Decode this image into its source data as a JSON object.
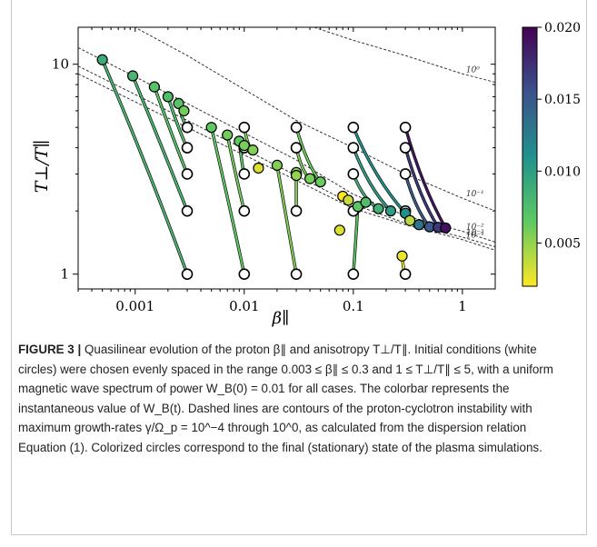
{
  "figure": {
    "caption_lead": "FIGURE 3 |",
    "caption_text": "Quasilinear evolution of the proton β∥ and anisotropy T⊥/T∥. Initial conditions (white circles) were chosen evenly spaced in the range 0.003 ≤ β∥ ≤ 0.3 and 1 ≤ T⊥/T∥ ≤ 5, with a uniform magnetic wave spectrum of power W_B(0) = 0.01 for all cases. The colorbar represents the instantaneous value of W_B(t). Dashed lines are contours of the proton-cyclotron instability with maximum growth-rates γ/Ω_p = 10^−4 through 10^0, as calculated from the dispersion relation Equation (1). Colorized circles correspond to the final (stationary) state of the plasma simulations."
  },
  "chart_data": {
    "type": "scatter",
    "xlabel": "β∥",
    "ylabel": "T⊥/T∥",
    "xscale": "log",
    "yscale": "log",
    "xlim": [
      0.0003,
      2
    ],
    "ylim": [
      0.85,
      15
    ],
    "x_ticks": [
      0.001,
      0.01,
      0.1,
      1
    ],
    "x_tick_labels": [
      "0.001",
      "0.01",
      "0.1",
      "1"
    ],
    "y_ticks": [
      1,
      10
    ],
    "y_tick_labels": [
      "1",
      "10"
    ],
    "colorbar": {
      "label_values": [
        0.005,
        0.01,
        0.015,
        0.02
      ],
      "tick_labels": [
        "0.005",
        "0.010",
        "0.015",
        "0.020"
      ],
      "range": [
        0.002,
        0.02
      ],
      "colors": [
        "#fde725",
        "#5ec962",
        "#21918c",
        "#3b528b",
        "#440154"
      ]
    },
    "contours": [
      {
        "label": "10⁰",
        "points": [
          [
            0.0003,
            31
          ],
          [
            0.003,
            22
          ],
          [
            0.03,
            16
          ],
          [
            0.1,
            13
          ],
          [
            0.3,
            11
          ],
          [
            1,
            9
          ],
          [
            2,
            8.2
          ]
        ]
      },
      {
        "label": "10⁻¹",
        "points": [
          [
            0.0003,
            21
          ],
          [
            0.003,
            11
          ],
          [
            0.03,
            5.4
          ],
          [
            0.1,
            4
          ],
          [
            0.3,
            3
          ],
          [
            1,
            2.3
          ],
          [
            2,
            2.0
          ]
        ]
      },
      {
        "label": "10⁻²",
        "points": [
          [
            0.0003,
            12
          ],
          [
            0.003,
            6.5
          ],
          [
            0.03,
            3.5
          ],
          [
            0.1,
            2.4
          ],
          [
            0.3,
            1.9
          ],
          [
            1,
            1.6
          ],
          [
            2,
            1.42
          ]
        ]
      },
      {
        "label": "10⁻³",
        "points": [
          [
            0.0003,
            9.8
          ],
          [
            0.003,
            5.4
          ],
          [
            0.03,
            2.95
          ],
          [
            0.1,
            2.15
          ],
          [
            0.3,
            1.75
          ],
          [
            1,
            1.5
          ],
          [
            2,
            1.35
          ]
        ]
      },
      {
        "label": "10⁻⁴",
        "points": [
          [
            0.0003,
            9.0
          ],
          [
            0.003,
            5.0
          ],
          [
            0.03,
            2.8
          ],
          [
            0.1,
            2.05
          ],
          [
            0.3,
            1.72
          ],
          [
            1,
            1.46
          ],
          [
            2,
            1.3
          ]
        ]
      }
    ],
    "initial_conditions": [
      [
        0.003,
        1
      ],
      [
        0.003,
        2
      ],
      [
        0.003,
        3
      ],
      [
        0.003,
        4
      ],
      [
        0.003,
        5
      ],
      [
        0.01,
        1
      ],
      [
        0.01,
        2
      ],
      [
        0.01,
        3
      ],
      [
        0.01,
        4
      ],
      [
        0.01,
        5
      ],
      [
        0.03,
        1
      ],
      [
        0.03,
        2
      ],
      [
        0.03,
        3
      ],
      [
        0.03,
        4
      ],
      [
        0.03,
        5
      ],
      [
        0.1,
        1
      ],
      [
        0.1,
        2
      ],
      [
        0.1,
        3
      ],
      [
        0.1,
        4
      ],
      [
        0.1,
        5
      ],
      [
        0.3,
        1
      ],
      [
        0.3,
        2
      ],
      [
        0.3,
        3
      ],
      [
        0.3,
        4
      ],
      [
        0.3,
        5
      ]
    ],
    "final_states": [
      {
        "x": 0.0005,
        "y": 10.5,
        "w": 0.009
      },
      {
        "x": 0.00095,
        "y": 8.8,
        "w": 0.008
      },
      {
        "x": 0.0015,
        "y": 7.8,
        "w": 0.007
      },
      {
        "x": 0.002,
        "y": 7.0,
        "w": 0.0075
      },
      {
        "x": 0.0025,
        "y": 6.5,
        "w": 0.007
      },
      {
        "x": 0.0028,
        "y": 6.0,
        "w": 0.006
      },
      {
        "x": 0.005,
        "y": 5.0,
        "w": 0.0065
      },
      {
        "x": 0.007,
        "y": 4.6,
        "w": 0.006
      },
      {
        "x": 0.009,
        "y": 4.3,
        "w": 0.0065
      },
      {
        "x": 0.01,
        "y": 4.1,
        "w": 0.0058
      },
      {
        "x": 0.012,
        "y": 3.9,
        "w": 0.0055
      },
      {
        "x": 0.0135,
        "y": 3.2,
        "w": 0.003
      },
      {
        "x": 0.02,
        "y": 3.3,
        "w": 0.0055
      },
      {
        "x": 0.03,
        "y": 3.05,
        "w": 0.0055
      },
      {
        "x": 0.03,
        "y": 2.95,
        "w": 0.005
      },
      {
        "x": 0.04,
        "y": 2.85,
        "w": 0.0058
      },
      {
        "x": 0.05,
        "y": 2.75,
        "w": 0.0062
      },
      {
        "x": 0.08,
        "y": 2.35,
        "w": 0.002
      },
      {
        "x": 0.09,
        "y": 2.25,
        "w": 0.0035
      },
      {
        "x": 0.11,
        "y": 2.1,
        "w": 0.0068
      },
      {
        "x": 0.13,
        "y": 2.2,
        "w": 0.0075
      },
      {
        "x": 0.17,
        "y": 2.05,
        "w": 0.0085
      },
      {
        "x": 0.22,
        "y": 2.0,
        "w": 0.01
      },
      {
        "x": 0.3,
        "y": 1.95,
        "w": 0.011
      },
      {
        "x": 0.33,
        "y": 1.8,
        "w": 0.004
      },
      {
        "x": 0.4,
        "y": 1.72,
        "w": 0.013
      },
      {
        "x": 0.5,
        "y": 1.68,
        "w": 0.015
      },
      {
        "x": 0.6,
        "y": 1.67,
        "w": 0.017
      },
      {
        "x": 0.7,
        "y": 1.66,
        "w": 0.019
      },
      {
        "x": 0.075,
        "y": 1.62,
        "w": 0.003
      },
      {
        "x": 0.28,
        "y": 1.22,
        "w": 0.0025
      }
    ],
    "trajectories": [
      {
        "from": [
          0.003,
          1
        ],
        "to": [
          0.0005,
          10.5
        ],
        "w": 0.008
      },
      {
        "from": [
          0.003,
          2
        ],
        "to": [
          0.00095,
          8.8
        ],
        "w": 0.008
      },
      {
        "from": [
          0.003,
          3
        ],
        "to": [
          0.0015,
          7.8
        ],
        "w": 0.007
      },
      {
        "from": [
          0.003,
          4
        ],
        "to": [
          0.002,
          7.0
        ],
        "w": 0.0075
      },
      {
        "from": [
          0.003,
          5
        ],
        "to": [
          0.0025,
          6.5
        ],
        "w": 0.007
      },
      {
        "from": [
          0.01,
          1
        ],
        "to": [
          0.005,
          5.0
        ],
        "w": 0.0065
      },
      {
        "from": [
          0.01,
          2
        ],
        "to": [
          0.007,
          4.6
        ],
        "w": 0.006
      },
      {
        "from": [
          0.01,
          3
        ],
        "to": [
          0.009,
          4.3
        ],
        "w": 0.0065
      },
      {
        "from": [
          0.01,
          4
        ],
        "to": [
          0.01,
          4.1
        ],
        "w": 0.0058
      },
      {
        "from": [
          0.01,
          5
        ],
        "to": [
          0.012,
          3.9
        ],
        "w": 0.0055
      },
      {
        "from": [
          0.03,
          1
        ],
        "to": [
          0.02,
          3.3
        ],
        "w": 0.0055
      },
      {
        "from": [
          0.03,
          2
        ],
        "to": [
          0.03,
          3.05
        ],
        "w": 0.0055
      },
      {
        "from": [
          0.03,
          3
        ],
        "to": [
          0.03,
          2.95
        ],
        "w": 0.005
      },
      {
        "from": [
          0.03,
          4
        ],
        "to": [
          0.04,
          2.85
        ],
        "w": 0.0058
      },
      {
        "from": [
          0.03,
          5
        ],
        "to": [
          0.05,
          2.75
        ],
        "w": 0.0062
      },
      {
        "from": [
          0.1,
          1
        ],
        "to": [
          0.11,
          2.1
        ],
        "w": 0.0068
      },
      {
        "from": [
          0.1,
          2
        ],
        "to": [
          0.13,
          2.2
        ],
        "w": 0.0075
      },
      {
        "from": [
          0.1,
          3
        ],
        "to": [
          0.17,
          2.05
        ],
        "w": 0.0085
      },
      {
        "from": [
          0.1,
          4
        ],
        "to": [
          0.22,
          2.0
        ],
        "w": 0.01
      },
      {
        "from": [
          0.1,
          5
        ],
        "to": [
          0.3,
          1.95
        ],
        "w": 0.011
      },
      {
        "from": [
          0.3,
          1
        ],
        "to": [
          0.28,
          1.22
        ],
        "w": 0.0025
      },
      {
        "from": [
          0.3,
          2
        ],
        "to": [
          0.4,
          1.72
        ],
        "w": 0.013
      },
      {
        "from": [
          0.3,
          3
        ],
        "to": [
          0.5,
          1.68
        ],
        "w": 0.015
      },
      {
        "from": [
          0.3,
          4
        ],
        "to": [
          0.6,
          1.67
        ],
        "w": 0.017
      },
      {
        "from": [
          0.3,
          5
        ],
        "to": [
          0.7,
          1.66
        ],
        "w": 0.019
      }
    ]
  }
}
